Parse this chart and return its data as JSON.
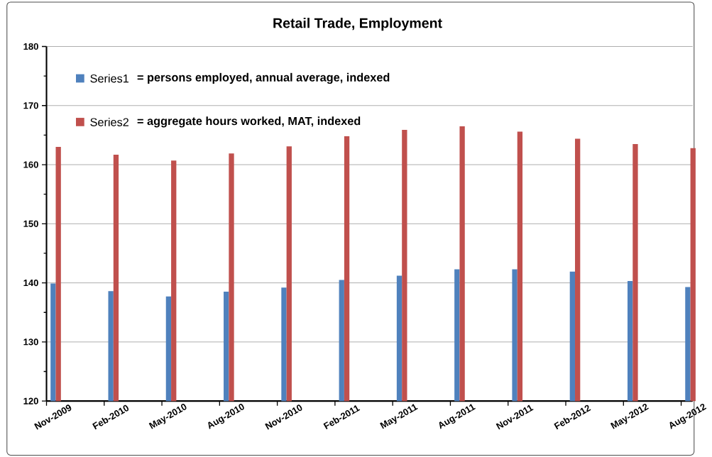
{
  "chart_data": {
    "type": "bar",
    "title": "Retail Trade, Employment",
    "categories": [
      "Nov-2009",
      "Feb-2010",
      "May-2010",
      "Aug-2010",
      "Nov-2010",
      "Feb-2011",
      "May-2011",
      "Aug-2011",
      "Nov-2011",
      "Feb-2012",
      "May-2012",
      "Aug-2012"
    ],
    "series": [
      {
        "name": "Series1",
        "color": "#4f81bd",
        "values": [
          139.9,
          138.6,
          137.7,
          138.5,
          139.2,
          140.5,
          141.2,
          142.3,
          142.3,
          141.9,
          140.3,
          139.3
        ]
      },
      {
        "name": "Series2",
        "color": "#c0504d",
        "values": [
          163.0,
          161.7,
          160.7,
          161.9,
          163.1,
          164.8,
          165.9,
          166.5,
          165.6,
          164.4,
          163.5,
          162.8
        ]
      }
    ],
    "annotations": [
      "= persons employed, annual average, indexed",
      "= aggregate hours worked, MAT, indexed"
    ],
    "ylim": [
      120,
      180
    ],
    "yticks": [
      120,
      130,
      140,
      150,
      160,
      170,
      180
    ],
    "grid": "y",
    "legend": "top left"
  }
}
